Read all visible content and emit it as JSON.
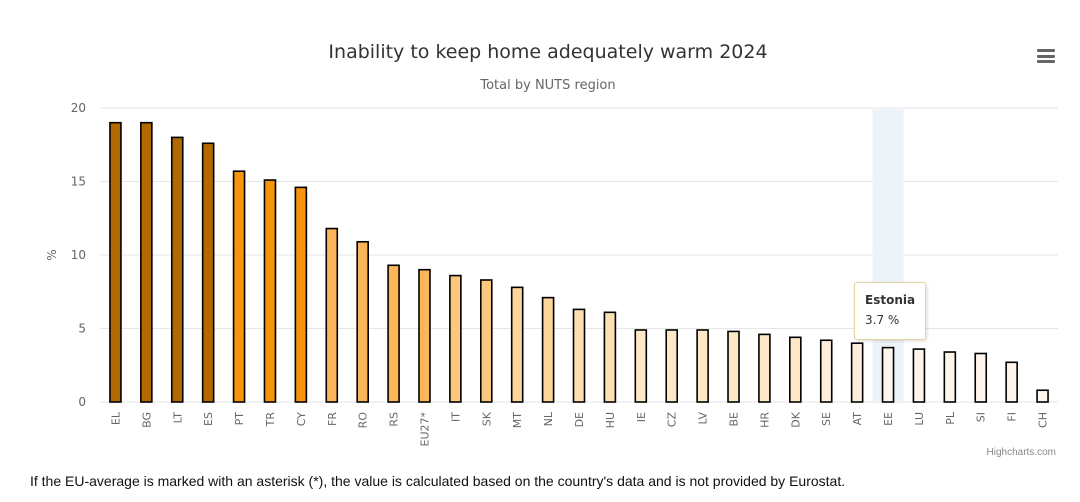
{
  "chart_data": {
    "type": "bar",
    "title": "Inability to keep home adequately warm 2024",
    "subtitle": "Total by NUTS region",
    "xlabel": "",
    "ylabel": "%",
    "ylim": [
      0,
      20
    ],
    "yticks": [
      0,
      5,
      10,
      15,
      20
    ],
    "grid": true,
    "legend": "none",
    "categories": [
      "EL",
      "BG",
      "LT",
      "ES",
      "PT",
      "TR",
      "CY",
      "FR",
      "RO",
      "RS",
      "EU27*",
      "IT",
      "SK",
      "MT",
      "NL",
      "DE",
      "HU",
      "IE",
      "CZ",
      "LV",
      "BE",
      "HR",
      "DK",
      "SE",
      "AT",
      "EE",
      "LU",
      "PL",
      "SI",
      "FI",
      "CH"
    ],
    "values": [
      19.0,
      19.0,
      18.0,
      17.6,
      15.7,
      15.1,
      14.6,
      11.8,
      10.9,
      9.3,
      9.0,
      8.6,
      8.3,
      7.8,
      7.1,
      6.3,
      6.1,
      4.9,
      4.9,
      4.9,
      4.8,
      4.6,
      4.4,
      4.2,
      4.0,
      3.7,
      3.6,
      3.4,
      3.3,
      2.7,
      0.8
    ],
    "colors": [
      "#b26a00",
      "#b26a00",
      "#b26a00",
      "#b26a00",
      "#f7940d",
      "#f7940d",
      "#f7940d",
      "#fbb55a",
      "#fbb55a",
      "#fbb55a",
      "#fbb55a",
      "#fbc87d",
      "#fbc87d",
      "#fbd59b",
      "#fbd59b",
      "#fce0b3",
      "#fce0b3",
      "#fce7c6",
      "#fce7c6",
      "#fce7c6",
      "#fce7c6",
      "#fce7c6",
      "#fce7c6",
      "#fdeedb",
      "#fdeedb",
      "#fef6ec",
      "#fef6ec",
      "#fef6ec",
      "#fef6ec",
      "#fef6ec",
      "#fef6ec"
    ],
    "highlight_index": 25,
    "highlight_color": "#eef2f9"
  },
  "tooltip": {
    "name": "Estonia",
    "value": "3.7 %"
  },
  "ui": {
    "menu_icon": "hamburger-menu-icon",
    "credits": "Highcharts.com",
    "footnote": "If the EU-average is marked with an asterisk (*), the value is calculated based on the country's data and is not provided by Eurostat."
  }
}
